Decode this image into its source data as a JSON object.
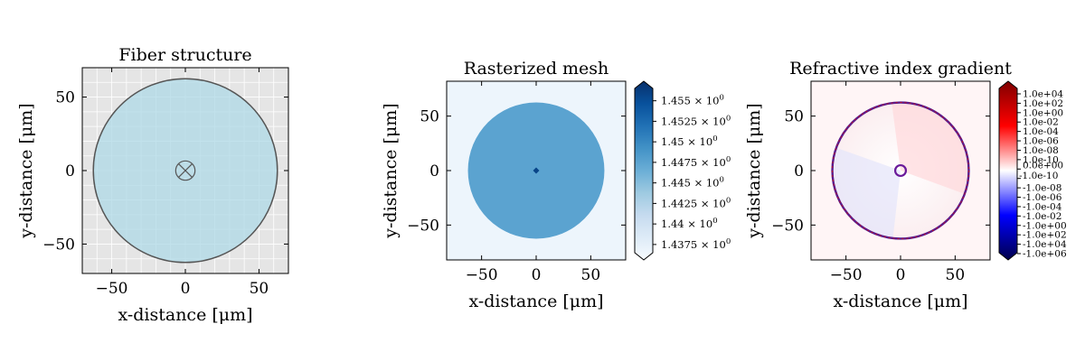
{
  "chart_data": [
    {
      "type": "structure",
      "title": "Fiber structure",
      "xlabel": "x-distance [μm]",
      "ylabel": "y-distance [μm]",
      "xlim": [
        -70,
        70
      ],
      "ylim": [
        -70,
        70
      ],
      "xticks": [
        -50,
        0,
        50
      ],
      "yticks": [
        -50,
        0,
        50
      ],
      "grid": true,
      "background_color": "#e5e5e5",
      "cladding": {
        "center": [
          0,
          0
        ],
        "radius": 62.5,
        "fill": "#add8e6",
        "edge": "#333333"
      },
      "core": {
        "center": [
          0,
          0
        ],
        "radius": 4.1,
        "marker": "x"
      }
    },
    {
      "type": "heatmap",
      "title": "Rasterized mesh",
      "xlabel": "x-distance [μm]",
      "ylabel": "y-distance [μm]",
      "xlim": [
        -82,
        82
      ],
      "ylim": [
        -82,
        82
      ],
      "xticks": [
        -50,
        0,
        50
      ],
      "yticks": [
        -50,
        0,
        50
      ],
      "regions": [
        {
          "name": "background",
          "value": 1.4375
        },
        {
          "name": "cladding",
          "radius": 62.5,
          "value": 1.4475
        },
        {
          "name": "core",
          "radius": 4.1,
          "value": 1.455
        }
      ],
      "colorbar": {
        "colormap": "Blues",
        "range": [
          1.4365,
          1.4565
        ],
        "ticks": [
          1.455,
          1.4525,
          1.45,
          1.4475,
          1.445,
          1.4425,
          1.44,
          1.4375
        ],
        "tick_mantissas": [
          "1.455",
          "1.4525",
          "1.45",
          "1.4475",
          "1.445",
          "1.4425",
          "1.44",
          "1.4375"
        ],
        "tick_suffix": "× 10",
        "tick_exponent": "0"
      }
    },
    {
      "type": "heatmap",
      "title": "Refractive index gradient",
      "xlabel": "x-distance [μm]",
      "ylabel": "y-distance [μm]",
      "xlim": [
        -82,
        82
      ],
      "ylim": [
        -82,
        82
      ],
      "xticks": [
        -50,
        0,
        50
      ],
      "yticks": [
        -50,
        0,
        50
      ],
      "colorbar": {
        "colormap": "seismic (symlog)",
        "ticks": [
          "1.0e+04",
          "1.0e+02",
          "1.0e+00",
          "1.0e-02",
          "1.0e-04",
          "1.0e-06",
          "1.0e-08",
          "1.0e-10",
          "0.0e+00",
          "-1.0e-10",
          "-1.0e-08",
          "-1.0e-06",
          "-1.0e-04",
          "-1.0e-02",
          "-1.0e+00",
          "-1.0e+02",
          "-1.0e+04",
          "-1.0e+06"
        ]
      }
    }
  ]
}
